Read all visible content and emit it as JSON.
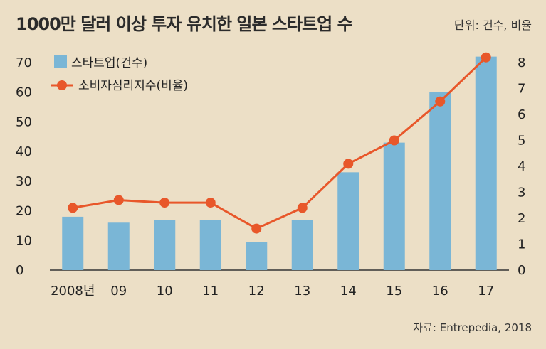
{
  "header": {
    "title": "1000만 달러 이상 투자 유치한 일본 스타트업 수",
    "unit": "단위: 건수, 비율"
  },
  "footer": {
    "source": "자료: Entrepedia, 2018"
  },
  "colors": {
    "bar": "#7ab6d6",
    "line": "#e8572a",
    "axis": "#333333"
  },
  "chart_data": {
    "type": "bar",
    "categories": [
      "2008년",
      "09",
      "10",
      "11",
      "12",
      "13",
      "14",
      "15",
      "16",
      "17"
    ],
    "series": [
      {
        "name": "스타트업(건수)",
        "type": "bar",
        "axis": "left",
        "values": [
          18,
          16,
          17,
          17,
          9.5,
          17,
          33,
          43,
          60,
          72
        ]
      },
      {
        "name": "소비자심리지수(비율)",
        "type": "line",
        "axis": "right",
        "values": [
          2.4,
          2.7,
          2.6,
          2.6,
          1.6,
          2.4,
          4.1,
          5.0,
          6.5,
          8.2
        ]
      }
    ],
    "y_left": {
      "range": [
        0,
        70
      ],
      "ticks": [
        0,
        10,
        20,
        30,
        40,
        50,
        60,
        70
      ]
    },
    "y_right": {
      "range": [
        0,
        8
      ],
      "ticks": [
        0,
        1,
        2,
        3,
        4,
        5,
        6,
        7,
        8
      ]
    },
    "grid": false,
    "legend_position": "top-left"
  }
}
